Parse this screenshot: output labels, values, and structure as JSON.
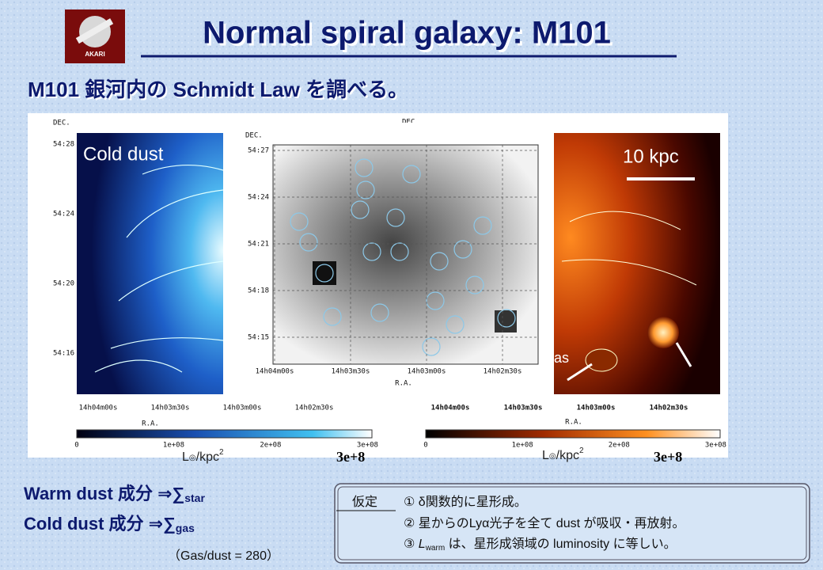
{
  "logo": "AKARI",
  "title": "Normal spiral galaxy: M101",
  "subtitle": "M101 銀河内の Schmidt Law を調べる。",
  "left_map": {
    "label": "Cold dust",
    "y_axis": "DEC.",
    "dec_ticks": [
      "54:28",
      "54:24",
      "54:20",
      "54:16"
    ],
    "x_axis": "R.A.",
    "ra_ticks": [
      "14h04m00s",
      "14h03m30s",
      "14h03m00s",
      "14h02m30s"
    ]
  },
  "center_map": {
    "y_axis": "DEC.",
    "dec_ticks": [
      "54:27",
      "54:24",
      "54:21",
      "54:18",
      "54:15"
    ],
    "x_axis": "R.A.",
    "ra_ticks": [
      "14h04m00s",
      "14h03m30s",
      "14h03m00s",
      "14h02m30s"
    ]
  },
  "right_map": {
    "y_axis": "DEC.",
    "scale_bar": "10 kpc",
    "annotation": "as",
    "x_axis": "R.A.",
    "ra_ticks": [
      "14h04m00s",
      "14h03m30s",
      "14h03m00s",
      "14h02m30s"
    ]
  },
  "colorbars": [
    {
      "ticks": [
        "0",
        "1e+08",
        "2e+08",
        "3e+08"
      ],
      "unit": "L",
      "unit_sym": "◎",
      "unit_rest": "/kpc",
      "unit_sup": "2",
      "max": "3e+8"
    },
    {
      "ticks": [
        "0",
        "1e+08",
        "2e+08",
        "3e+08"
      ],
      "unit": "L",
      "unit_sym": "◎",
      "unit_rest": "/kpc",
      "unit_sup": "2",
      "max": "3e+8"
    }
  ],
  "notes": {
    "warm": {
      "text": "Warm dust 成分 ⇒∑",
      "sub": "star"
    },
    "cold": {
      "text": "Cold dust 成分 ⇒∑",
      "sub": "gas"
    },
    "ratio": "（Gas/dust = 280）"
  },
  "assumptions": {
    "heading": "仮定",
    "items": [
      "① δ関数的に星形成。",
      "② 星からのLyα光子を全て dust が吸収・再放射。",
      {
        "pre": "③ ",
        "L": "L",
        "sub": "warm",
        "post": " は、星形成領域の luminosity に等しい。"
      }
    ]
  }
}
